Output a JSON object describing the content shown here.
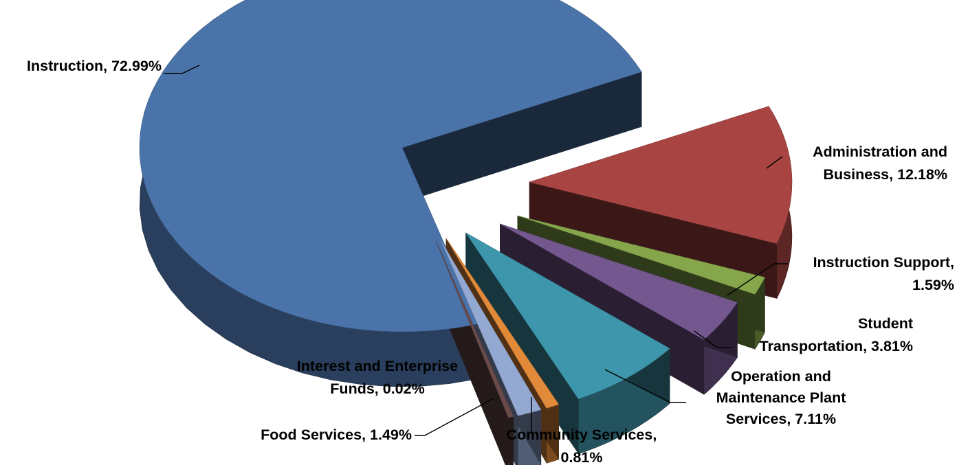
{
  "chart_data": {
    "type": "pie",
    "title": "",
    "three_d": true,
    "exploded": true,
    "legend": "none",
    "slices": [
      {
        "name": "Instruction",
        "value": 72.99,
        "label_lines": [
          "Instruction, 72.99%"
        ],
        "color": "#4A73A9"
      },
      {
        "name": "Administration and Business",
        "value": 12.18,
        "label_lines": [
          "Administration and",
          "Business, 12.18%"
        ],
        "color": "#A84542"
      },
      {
        "name": "Instruction Support",
        "value": 1.59,
        "label_lines": [
          "Instruction Support,",
          "1.59%"
        ],
        "color": "#86A64C"
      },
      {
        "name": "Student Transportation",
        "value": 3.81,
        "label_lines": [
          "Student",
          "Transportation, 3.81%"
        ],
        "color": "#74578F"
      },
      {
        "name": "Operation and Maintenance Plant Services",
        "value": 7.11,
        "label_lines": [
          "Operation and",
          "Maintenance Plant",
          "Services, 7.11%"
        ],
        "color": "#3E96AC"
      },
      {
        "name": "Community Services",
        "value": 0.81,
        "label_lines": [
          "Community Services,",
          "0.81%"
        ],
        "color": "#E18A3A"
      },
      {
        "name": "Food Services",
        "value": 1.49,
        "label_lines": [
          "Food Services, 1.49%"
        ],
        "color": "#93A9D2"
      },
      {
        "name": "Interest and Enterprise Funds",
        "value": 0.02,
        "label_lines": [
          "Interest and Enterprise",
          "Funds, 0.02%"
        ],
        "color": "#6B4A4A"
      }
    ]
  }
}
